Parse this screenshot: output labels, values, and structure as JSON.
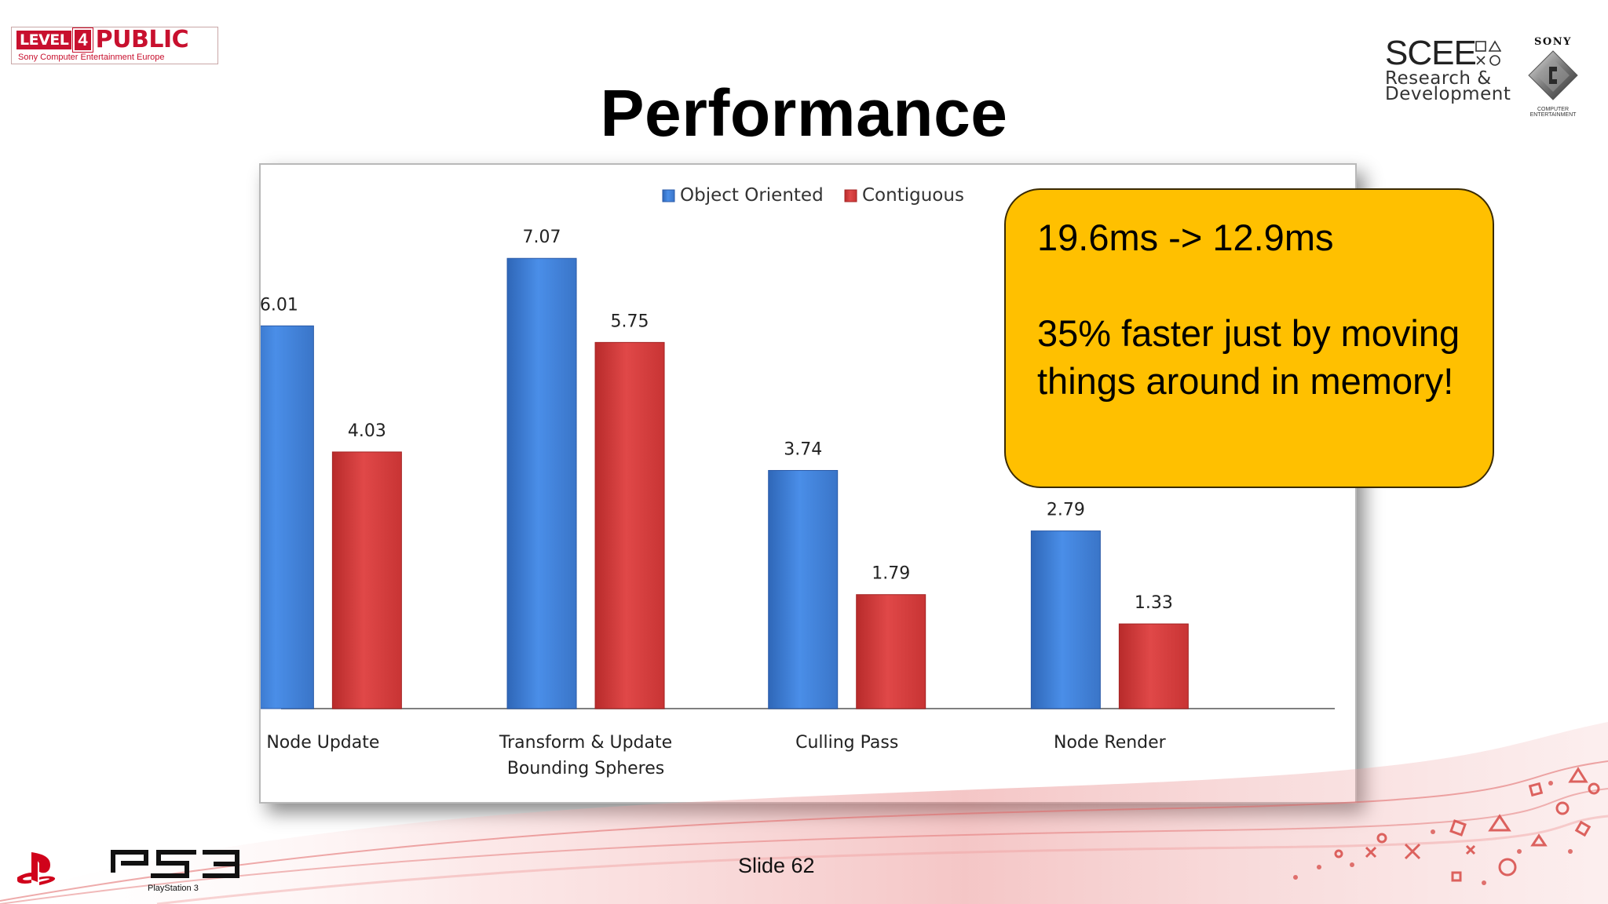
{
  "header": {
    "badge_level": "LEVEL",
    "badge_number": "4",
    "badge_public": "PUBLIC",
    "badge_sub": "Sony Computer Entertainment Europe",
    "title": "Performance",
    "scee_big": "SCEE",
    "scee_line1": "Research &",
    "scee_line2": "Development",
    "sony_word": "SONY",
    "sony_sub": "COMPUTER ENTERTAINMENT"
  },
  "callout": {
    "line1": "19.6ms -> 12.9ms",
    "line2": "35% faster just by moving things around in memory!"
  },
  "chart_data": {
    "type": "bar",
    "categories": [
      "Node Update",
      "Transform & Update Bounding Spheres",
      "Culling Pass",
      "Node Render"
    ],
    "category_lines": [
      [
        "Node Update"
      ],
      [
        "Transform & Update",
        "Bounding Spheres"
      ],
      [
        "Culling Pass"
      ],
      [
        "Node Render"
      ]
    ],
    "series": [
      {
        "name": "Object Oriented",
        "values": [
          6.01,
          7.07,
          3.74,
          2.79
        ],
        "color": "#3f7fd6"
      },
      {
        "name": "Contiguous",
        "values": [
          4.03,
          5.75,
          1.79,
          1.33
        ],
        "color": "#d63a3a"
      }
    ],
    "data_labels": [
      [
        "6.01",
        "7.07",
        "3.74",
        "2.79"
      ],
      [
        "4.03",
        "5.75",
        "1.79",
        "1.33"
      ]
    ],
    "legend": "top",
    "grid": false,
    "ylim": [
      0,
      7.8
    ]
  },
  "footer": {
    "slide_number": "Slide 62",
    "ps3_label": "PlayStation 3"
  }
}
